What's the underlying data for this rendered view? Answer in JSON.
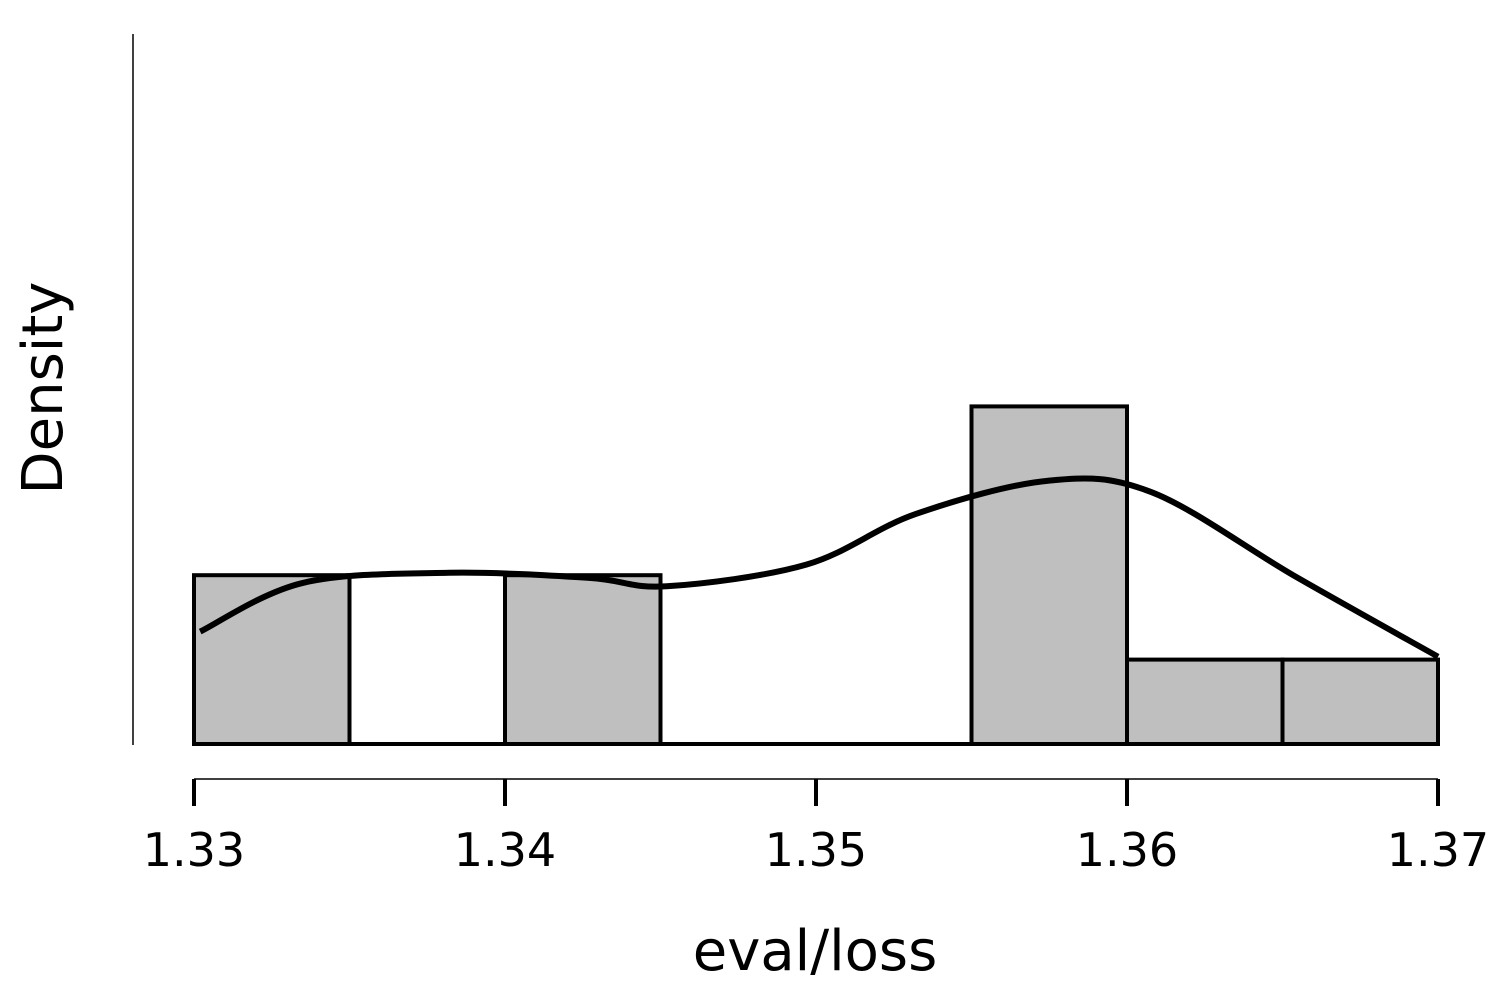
{
  "chart_data": {
    "type": "bar",
    "subtype": "histogram-with-density-curve",
    "xlabel": "eval/loss",
    "ylabel": "Density",
    "xlim": [
      1.33,
      1.37
    ],
    "x_ticks": [
      "1.33",
      "1.34",
      "1.35",
      "1.36",
      "1.37"
    ],
    "grid": false,
    "legend": "none",
    "bins": [
      {
        "start": 1.33,
        "end": 1.335,
        "count": 2
      },
      {
        "start": 1.335,
        "end": 1.34,
        "count": 0
      },
      {
        "start": 1.34,
        "end": 1.345,
        "count": 2
      },
      {
        "start": 1.345,
        "end": 1.35,
        "count": 0
      },
      {
        "start": 1.35,
        "end": 1.355,
        "count": 0
      },
      {
        "start": 1.355,
        "end": 1.36,
        "count": 4
      },
      {
        "start": 1.36,
        "end": 1.365,
        "count": 1
      },
      {
        "start": 1.365,
        "end": 1.37,
        "count": 1
      }
    ],
    "density_curve": {
      "x": [
        1.3302,
        1.3335,
        1.3382,
        1.3427,
        1.3452,
        1.3497,
        1.3532,
        1.3575,
        1.3608,
        1.3654,
        1.37
      ],
      "y": [
        0.67,
        0.96,
        1.02,
        0.99,
        0.94,
        1.07,
        1.37,
        1.57,
        1.5,
        1.0,
        0.52
      ]
    },
    "colors": {
      "bar_fill": "#bfbfbf",
      "bar_stroke": "#000000",
      "curve": "#000000",
      "axis": "#000000"
    }
  }
}
